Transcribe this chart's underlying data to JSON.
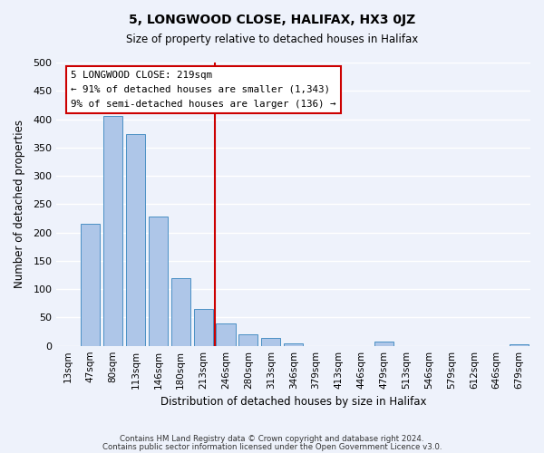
{
  "title": "5, LONGWOOD CLOSE, HALIFAX, HX3 0JZ",
  "subtitle": "Size of property relative to detached houses in Halifax",
  "xlabel": "Distribution of detached houses by size in Halifax",
  "ylabel": "Number of detached properties",
  "bar_color": "#aec6e8",
  "bar_edge_color": "#4a90c4",
  "background_color": "#eef2fb",
  "grid_color": "#ffffff",
  "categories": [
    "13sqm",
    "47sqm",
    "80sqm",
    "113sqm",
    "146sqm",
    "180sqm",
    "213sqm",
    "246sqm",
    "280sqm",
    "313sqm",
    "346sqm",
    "379sqm",
    "413sqm",
    "446sqm",
    "479sqm",
    "513sqm",
    "546sqm",
    "579sqm",
    "612sqm",
    "646sqm",
    "679sqm"
  ],
  "values": [
    0,
    215,
    405,
    373,
    228,
    120,
    65,
    40,
    20,
    14,
    5,
    0,
    0,
    0,
    8,
    0,
    0,
    0,
    0,
    0,
    2
  ],
  "ylim": [
    0,
    500
  ],
  "yticks": [
    0,
    50,
    100,
    150,
    200,
    250,
    300,
    350,
    400,
    450,
    500
  ],
  "vline_color": "#cc0000",
  "vline_pos": 6.5,
  "annotation_title": "5 LONGWOOD CLOSE: 219sqm",
  "annotation_line1": "← 91% of detached houses are smaller (1,343)",
  "annotation_line2": "9% of semi-detached houses are larger (136) →",
  "annotation_box_color": "#ffffff",
  "annotation_box_edge": "#cc0000",
  "footnote1": "Contains HM Land Registry data © Crown copyright and database right 2024.",
  "footnote2": "Contains public sector information licensed under the Open Government Licence v3.0."
}
